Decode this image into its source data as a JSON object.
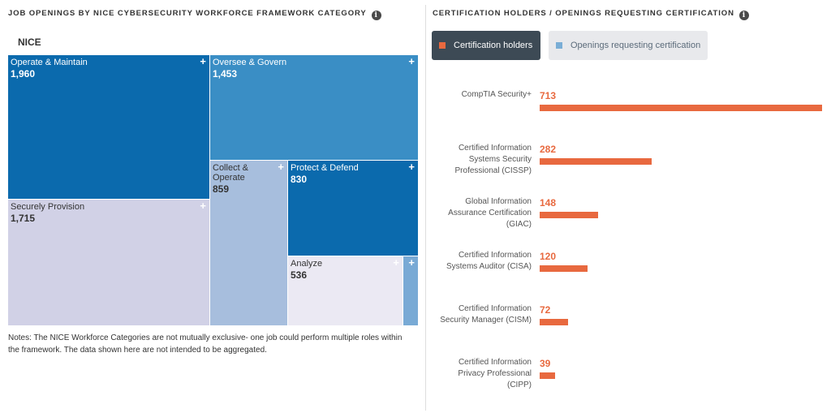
{
  "left_panel": {
    "title": "JOB OPENINGS BY NICE CYBERSECURITY WORKFORCE FRAMEWORK CATEGORY",
    "info_icon": "info-icon",
    "notes": "Notes: The NICE Workforce Categories are not mutually exclusive- one job could perform multiple roles within the framework. The data shown here are not intended to be aggregated."
  },
  "right_panel": {
    "title": "CERTIFICATION HOLDERS / OPENINGS REQUESTING CERTIFICATION",
    "info_icon": "info-icon",
    "legend": {
      "active": "Certification holders",
      "inactive": "Openings requesting certification"
    }
  },
  "colors": {
    "accent_orange": "#e8693f",
    "legend_active_bg": "#3d4a55",
    "legend_inactive_bg": "#e8e9ec",
    "inactive_swatch": "#7aaed6"
  },
  "chart_data": [
    {
      "type": "treemap",
      "root": "NICE",
      "nodes": [
        {
          "name": "Operate & Maintain",
          "value": 1960,
          "label": "1,960",
          "color": "#0b6aad"
        },
        {
          "name": "Oversee & Govern",
          "value": 1453,
          "label": "1,453",
          "color": "#3a8ec5"
        },
        {
          "name": "Securely Provision",
          "value": 1715,
          "label": "1,715",
          "color": "#d1d1e6"
        },
        {
          "name": "Collect & Operate",
          "value": 859,
          "label": "859",
          "color": "#a7bedd"
        },
        {
          "name": "Protect & Defend",
          "value": 830,
          "label": "830",
          "color": "#0b6aad"
        },
        {
          "name": "Analyze",
          "value": 536,
          "label": "536",
          "color": "#ebe9f3"
        },
        {
          "name": "",
          "value": null,
          "label": "",
          "color": "#79aad5"
        }
      ]
    },
    {
      "type": "bar",
      "orientation": "horizontal",
      "series": [
        {
          "name": "Certification holders",
          "values": [
            713,
            282,
            148,
            120,
            72,
            39
          ]
        }
      ],
      "categories": [
        "CompTIA Security+",
        "Certified Information Systems Security Professional (CISSP)",
        "Global Information Assurance Certification (GIAC)",
        "Certified Information Systems Auditor (CISA)",
        "Certified Information Security Manager (CISM)",
        "Certified Information Privacy Professional (CIPP)"
      ],
      "value_labels": [
        "713",
        "282",
        "148",
        "120",
        "72",
        "39"
      ],
      "xlim": [
        0,
        713
      ]
    }
  ]
}
